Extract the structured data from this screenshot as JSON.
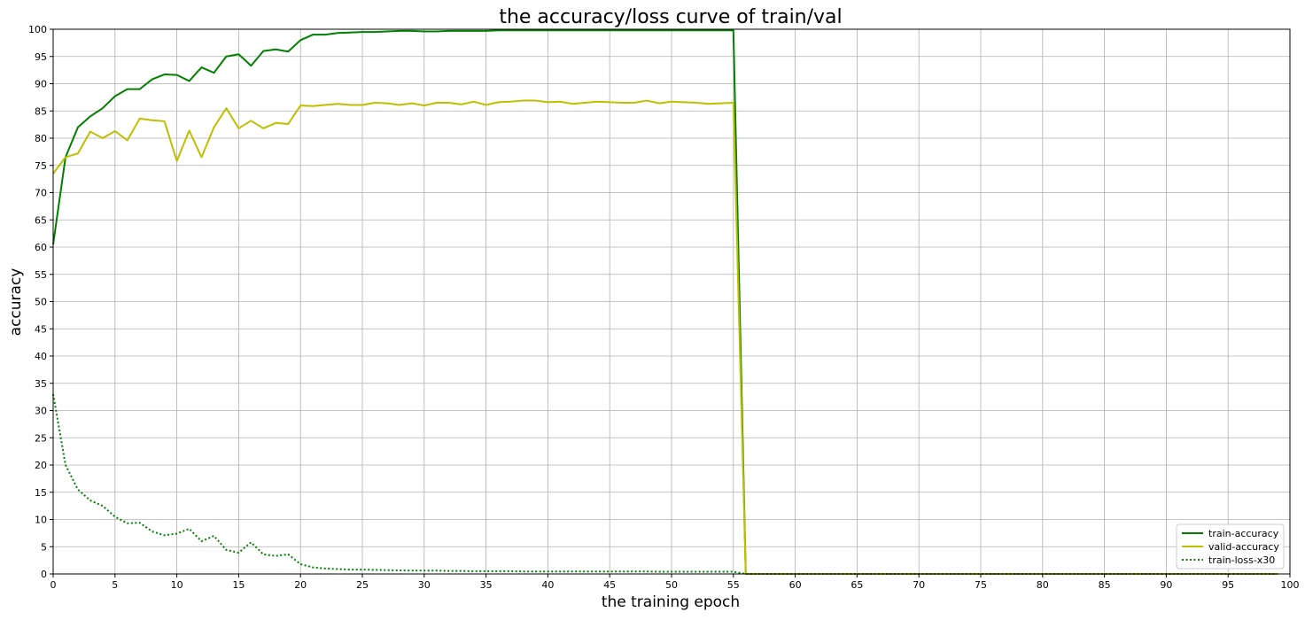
{
  "chart_data": {
    "type": "line",
    "title": "the accuracy/loss curve of train/val",
    "xlabel": "the training epoch",
    "ylabel": "accuracy",
    "xlim": [
      0,
      100
    ],
    "ylim": [
      0,
      100
    ],
    "xticks": [
      0,
      5,
      10,
      15,
      20,
      25,
      30,
      35,
      40,
      45,
      50,
      55,
      60,
      65,
      70,
      75,
      80,
      85,
      90,
      95,
      100
    ],
    "yticks": [
      0,
      5,
      10,
      15,
      20,
      25,
      30,
      35,
      40,
      45,
      50,
      55,
      60,
      65,
      70,
      75,
      80,
      85,
      90,
      95,
      100
    ],
    "grid": true,
    "legend_position": "lower-right",
    "x": [
      0,
      1,
      2,
      3,
      4,
      5,
      6,
      7,
      8,
      9,
      10,
      11,
      12,
      13,
      14,
      15,
      16,
      17,
      18,
      19,
      20,
      21,
      22,
      23,
      24,
      25,
      26,
      27,
      28,
      29,
      30,
      31,
      32,
      33,
      34,
      35,
      36,
      37,
      38,
      39,
      40,
      41,
      42,
      43,
      44,
      45,
      46,
      47,
      48,
      49,
      50,
      51,
      52,
      53,
      54,
      55,
      56,
      57,
      58,
      59,
      60,
      61,
      62,
      63,
      64,
      65,
      66,
      67,
      68,
      69,
      70,
      71,
      72,
      73,
      74,
      75,
      76,
      77,
      78,
      79,
      80,
      81,
      82,
      83,
      84,
      85,
      86,
      87,
      88,
      89,
      90,
      91,
      92,
      93,
      94,
      95,
      96,
      97,
      98,
      99
    ],
    "series": [
      {
        "name": "train-accuracy",
        "color": "#008000",
        "style": "solid",
        "values": [
          60.5,
          76.5,
          82,
          84,
          85.5,
          87.7,
          89,
          89,
          90.8,
          91.7,
          91.6,
          90.5,
          93,
          92,
          95,
          95.4,
          93.3,
          96,
          96.3,
          95.9,
          98,
          99,
          99,
          99.3,
          99.4,
          99.5,
          99.5,
          99.6,
          99.7,
          99.7,
          99.6,
          99.6,
          99.7,
          99.7,
          99.7,
          99.7,
          99.8,
          99.8,
          99.8,
          99.8,
          99.8,
          99.8,
          99.8,
          99.8,
          99.8,
          99.8,
          99.8,
          99.8,
          99.8,
          99.8,
          99.8,
          99.8,
          99.8,
          99.8,
          99.8,
          99.8,
          0,
          0,
          0,
          0,
          0,
          0,
          0,
          0,
          0,
          0,
          0,
          0,
          0,
          0,
          0,
          0,
          0,
          0,
          0,
          0,
          0,
          0,
          0,
          0,
          0,
          0,
          0,
          0,
          0,
          0,
          0,
          0,
          0,
          0,
          0,
          0,
          0,
          0,
          0,
          0,
          0,
          0,
          0,
          0
        ]
      },
      {
        "name": "valid-accuracy",
        "color": "#bfbf00",
        "style": "solid",
        "values": [
          73.5,
          76.5,
          77.2,
          81.2,
          80,
          81.3,
          79.6,
          83.6,
          83.3,
          83.1,
          75.8,
          81.4,
          76.5,
          82,
          85.5,
          81.8,
          83.2,
          81.8,
          82.8,
          82.6,
          86,
          85.9,
          86.1,
          86.3,
          86.1,
          86.1,
          86.5,
          86.4,
          86.1,
          86.4,
          86,
          86.5,
          86.5,
          86.2,
          86.7,
          86.1,
          86.6,
          86.7,
          86.9,
          86.9,
          86.6,
          86.7,
          86.3,
          86.5,
          86.7,
          86.6,
          86.5,
          86.5,
          86.9,
          86.4,
          86.7,
          86.6,
          86.5,
          86.3,
          86.4,
          86.5,
          0,
          0,
          0,
          0,
          0,
          0,
          0,
          0,
          0,
          0,
          0,
          0,
          0,
          0,
          0,
          0,
          0,
          0,
          0,
          0,
          0,
          0,
          0,
          0,
          0,
          0,
          0,
          0,
          0,
          0,
          0,
          0,
          0,
          0,
          0,
          0,
          0,
          0,
          0,
          0,
          0,
          0,
          0,
          0
        ]
      },
      {
        "name": "train-loss-x30",
        "color": "#008000",
        "style": "dotted",
        "values": [
          33,
          20,
          15.5,
          13.5,
          12.5,
          10.5,
          9.3,
          9.4,
          7.8,
          7.1,
          7.4,
          8.3,
          6,
          7,
          4.4,
          3.9,
          5.8,
          3.6,
          3.3,
          3.6,
          1.8,
          1.2,
          1,
          0.9,
          0.8,
          0.8,
          0.75,
          0.7,
          0.65,
          0.6,
          0.6,
          0.6,
          0.55,
          0.55,
          0.5,
          0.5,
          0.5,
          0.5,
          0.45,
          0.45,
          0.45,
          0.45,
          0.45,
          0.45,
          0.45,
          0.45,
          0.45,
          0.45,
          0.45,
          0.4,
          0.4,
          0.4,
          0.4,
          0.4,
          0.4,
          0.4,
          0,
          0,
          0,
          0,
          0,
          0,
          0,
          0,
          0,
          0,
          0,
          0,
          0,
          0,
          0,
          0,
          0,
          0,
          0,
          0,
          0,
          0,
          0,
          0,
          0,
          0,
          0,
          0,
          0,
          0,
          0,
          0,
          0,
          0,
          0,
          0,
          0,
          0,
          0,
          0,
          0,
          0,
          0,
          0
        ]
      }
    ]
  }
}
